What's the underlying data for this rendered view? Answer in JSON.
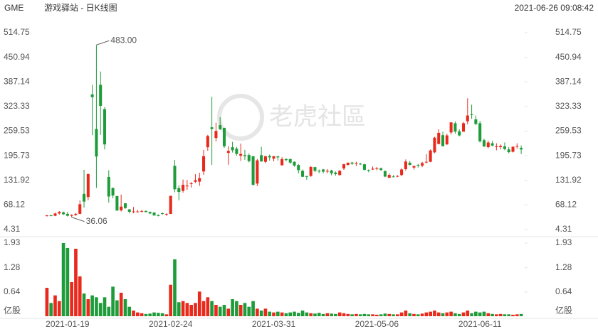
{
  "chart_data": {
    "type": "candlestick",
    "title": "GME",
    "subtitle": "游戏驿站 - 日K线图",
    "timestamp": "2021-06-26 09:08:42",
    "watermark": "老虎社區",
    "categories": [
      null,
      null,
      null,
      null,
      null,
      "2021-01-19",
      null,
      null,
      null,
      null,
      null,
      null,
      null,
      null,
      null,
      null,
      null,
      null,
      null,
      null,
      null,
      null,
      null,
      null,
      null,
      null,
      null,
      null,
      null,
      null,
      "2021-02-24",
      null,
      null,
      null,
      null,
      null,
      null,
      null,
      null,
      null,
      null,
      null,
      null,
      null,
      null,
      null,
      null,
      null,
      null,
      null,
      null,
      null,
      null,
      null,
      null,
      "2021-03-31",
      null,
      null,
      null,
      null,
      null,
      null,
      null,
      null,
      null,
      null,
      null,
      null,
      null,
      null,
      null,
      null,
      null,
      null,
      null,
      null,
      null,
      null,
      null,
      null,
      "2021-05-06",
      null,
      null,
      null,
      null,
      null,
      null,
      null,
      null,
      null,
      null,
      null,
      null,
      null,
      null,
      null,
      null,
      null,
      null,
      null,
      null,
      null,
      null,
      null,
      null,
      "2021-06-11",
      null,
      null,
      null,
      null,
      null,
      null,
      null,
      null,
      null,
      null
    ],
    "open": [
      40,
      41,
      40,
      46,
      49,
      45,
      40,
      42,
      45,
      96.73,
      88.56,
      354.83,
      265,
      379.71,
      316.56,
      140.76,
      112.01,
      91.19,
      54.04,
      72.41,
      56.61,
      50.77,
      50.01,
      50.75,
      52.66,
      49.77,
      48.49,
      41.28,
      46.69,
      44.97,
      44.7,
      169.56,
      111.79,
      104.54,
      116.93,
      122.5,
      128.17,
      128.57,
      154.89,
      217.71,
      269.43,
      241.64,
      275,
      268,
      203.16,
      217.84,
      214,
      195.73,
      197.16,
      197.5,
      194.49,
      123.49,
      197.24,
      180,
      195,
      187.99,
      193.77,
      171,
      186.99,
      187,
      180,
      171.8,
      156.61,
      143.01,
      143.14,
      166.17,
      156.52,
      160,
      155,
      157.5,
      152,
      145.5,
      162.75,
      172,
      178,
      175,
      175.01,
      173.5,
      159,
      160,
      163,
      163,
      156,
      138.5,
      141.94,
      142.5,
      145.75,
      161,
      177.5,
      165,
      172,
      170,
      180,
      180,
      204.5,
      226.07,
      249,
      225.1,
      256,
      280,
      259,
      258,
      285,
      303,
      290,
      280,
      236,
      218,
      228,
      220,
      218,
      220,
      212,
      206,
      220,
      216
    ],
    "high": [
      42,
      43,
      48,
      52,
      51,
      50,
      44,
      47,
      80,
      159.18,
      150,
      380,
      483,
      413.98,
      322,
      158,
      113.4,
      91.5,
      95,
      72.66,
      57.25,
      62.83,
      55.32,
      55.24,
      53.5,
      51.19,
      48.87,
      43.92,
      48.51,
      46.23,
      91.71,
      184.68,
      118.98,
      133.99,
      133.2,
      127.75,
      147.87,
      151.53,
      210.87,
      249.85,
      348.5,
      281.5,
      295.5,
      268,
      220.7,
      231.47,
      218.88,
      227,
      210.87,
      201.75,
      195,
      187.5,
      218.88,
      195,
      198.75,
      194.9,
      196,
      192,
      189,
      188.4,
      181,
      174.6,
      159.9,
      143.5,
      169.5,
      167,
      160,
      161.5,
      160.99,
      159.34,
      155,
      158.8,
      175,
      177.77,
      180,
      180.31,
      177.2,
      175,
      160,
      168,
      166.6,
      165,
      157,
      149.75,
      145.45,
      145,
      163,
      186,
      181.93,
      170,
      174.8,
      180,
      199.5,
      212,
      244.71,
      264.23,
      258,
      252.5,
      282,
      285,
      264,
      283,
      344.66,
      328,
      300,
      286,
      240,
      235,
      234,
      228,
      225,
      230,
      218,
      220,
      228,
      222
    ],
    "low": [
      38,
      39,
      39,
      43,
      42,
      38,
      36.06,
      40,
      44,
      61.13,
      80.2,
      249,
      112.25,
      250,
      212,
      74.22,
      85.25,
      53.33,
      51.09,
      58.02,
      46.52,
      46.55,
      48.22,
      48.05,
      49.04,
      44.56,
      40.65,
      38.5,
      42.4,
      40,
      44.7,
      101,
      80,
      99.97,
      107.18,
      113.12,
      125.14,
      117.5,
      146.1,
      208.51,
      172,
      232.6,
      262.27,
      216,
      172.35,
      204,
      195.65,
      182.66,
      185.1,
      178.5,
      118,
      117.01,
      180,
      176.5,
      183,
      181.18,
      183,
      170,
      181,
      174.59,
      167.2,
      150.01,
      140.4,
      133,
      141,
      153.01,
      150.52,
      150,
      150.5,
      145.14,
      144,
      144.5,
      159,
      170.1,
      172.11,
      168.83,
      172.11,
      157,
      153,
      159,
      158,
      155.5,
      140,
      138.01,
      140.01,
      140,
      142.42,
      157.01,
      170.47,
      160,
      165,
      166,
      175.5,
      179,
      202.09,
      225,
      220,
      224,
      251,
      253,
      246,
      258,
      277,
      291.51,
      275,
      230,
      218,
      215,
      220,
      210,
      212,
      210,
      202,
      204,
      214,
      200
    ],
    "close": [
      41,
      40,
      46,
      50,
      44,
      40,
      42,
      45,
      70,
      76.79,
      147.98,
      347.51,
      193.6,
      325,
      225,
      90,
      92.41,
      53.5,
      63.77,
      60,
      50.31,
      51.2,
      51.1,
      52.4,
      49.51,
      45.94,
      40.69,
      40.59,
      46,
      44.97,
      91.71,
      108.73,
      101.74,
      120.4,
      118.18,
      124.18,
      132.35,
      137.74,
      194.5,
      246.9,
      265,
      260,
      264.5,
      220.14,
      208.17,
      209.81,
      200.27,
      200.27,
      194.49,
      181.75,
      120.34,
      183.75,
      181,
      194.46,
      191.45,
      194.46,
      191.45,
      186.95,
      184.5,
      177.97,
      170.26,
      158.36,
      141.09,
      140.99,
      166.53,
      156.44,
      154.69,
      154.48,
      156.48,
      150.1,
      147.98,
      156.44,
      173.59,
      177.77,
      175,
      176.19,
      173.59,
      159.25,
      158.9,
      162,
      163.2,
      159.01,
      141.69,
      145.95,
      140.01,
      143.31,
      160.15,
      180.6,
      172,
      169,
      170,
      176.79,
      180,
      209.43,
      242.56,
      255.1,
      220.39,
      248.36,
      282.24,
      258.18,
      248.36,
      280.01,
      300,
      302.56,
      278,
      233,
      220,
      230,
      222,
      220,
      221,
      213,
      205,
      219,
      221,
      212
    ],
    "up_color": "#e8291c",
    "down_color": "#1f9c3a",
    "ylim": [
      4.31,
      514.75
    ],
    "yticks": [
      4.31,
      68.12,
      131.92,
      195.73,
      259.53,
      323.33,
      387.14,
      450.94,
      514.75
    ],
    "annotations": [
      {
        "value": 483,
        "label": "483.00"
      },
      {
        "value": 36.06,
        "label": "36.06"
      }
    ],
    "volume": {
      "unit": "亿股",
      "ylim": [
        0,
        1.93
      ],
      "yticks": [
        0.64,
        1.28,
        1.93
      ],
      "values": [
        0.75,
        0.35,
        0.55,
        0.4,
        1.93,
        1.8,
        0.9,
        1.78,
        1.05,
        0.6,
        0.45,
        0.55,
        0.5,
        0.35,
        0.5,
        0.25,
        0.78,
        0.42,
        0.62,
        0.45,
        0.25,
        0.15,
        0.1,
        0.08,
        0.06,
        0.07,
        0.1,
        0.09,
        0.08,
        0.05,
        0.83,
        1.5,
        0.37,
        0.4,
        0.35,
        0.3,
        0.35,
        0.65,
        0.4,
        0.5,
        0.4,
        0.3,
        0.25,
        0.3,
        0.2,
        0.45,
        0.4,
        0.3,
        0.35,
        0.25,
        0.4,
        0.2,
        0.15,
        0.2,
        0.12,
        0.1,
        0.12,
        0.1,
        0.08,
        0.1,
        0.12,
        0.09,
        0.15,
        0.1,
        0.08,
        0.07,
        0.09,
        0.06,
        0.08,
        0.07,
        0.06,
        0.1,
        0.08,
        0.06,
        0.05,
        0.06,
        0.05,
        0.06,
        0.05,
        0.05,
        0.04,
        0.05,
        0.07,
        0.06,
        0.05,
        0.05,
        0.1,
        0.15,
        0.08,
        0.06,
        0.05,
        0.07,
        0.1,
        0.12,
        0.15,
        0.1,
        0.08,
        0.1,
        0.12,
        0.08,
        0.06,
        0.1,
        0.15,
        0.08,
        0.12,
        0.1,
        0.12,
        0.08,
        0.06,
        0.05,
        0.06,
        0.05,
        0.05,
        0.04,
        0.05,
        0.06
      ]
    }
  }
}
